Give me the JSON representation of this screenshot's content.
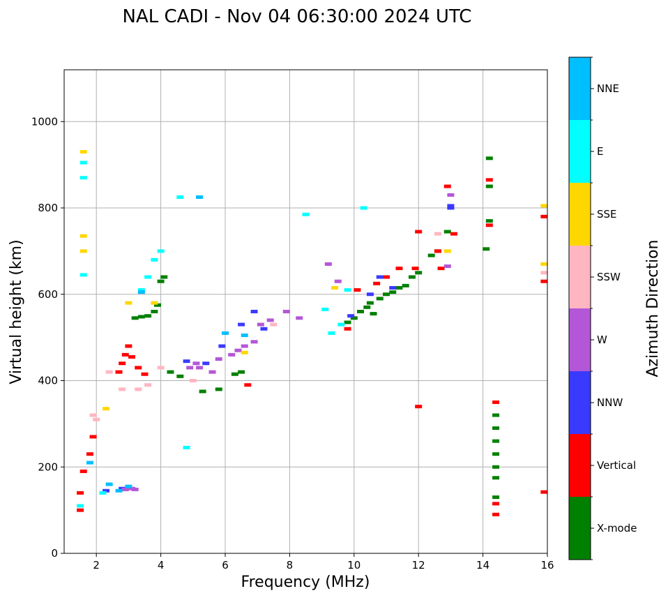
{
  "chart_data": {
    "type": "scatter",
    "title": "NAL CADI - Nov 04 06:30:00 2024 UTC",
    "xlabel": "Frequency (MHz)",
    "ylabel": "Virtual height (km)",
    "xlim": [
      1,
      16
    ],
    "ylim": [
      0,
      1120
    ],
    "grid": true,
    "xticks": [
      2,
      4,
      6,
      8,
      10,
      12,
      14,
      16
    ],
    "yticks": [
      0,
      200,
      400,
      600,
      800,
      1000
    ],
    "colorbar": {
      "label": "Azimuth Direction",
      "categories": [
        "X-mode",
        "Vertical",
        "NNW",
        "W",
        "SSW",
        "SSE",
        "E",
        "NNE"
      ],
      "colors": [
        "#008000",
        "#ff0000",
        "#3a3aff",
        "#b456d8",
        "#ffb6c1",
        "#ffd700",
        "#00ffff",
        "#00bfff"
      ]
    },
    "series": [
      {
        "name": "X-mode",
        "points": [
          [
            3.2,
            545
          ],
          [
            3.4,
            548
          ],
          [
            3.6,
            550
          ],
          [
            3.8,
            560
          ],
          [
            3.9,
            575
          ],
          [
            4.0,
            630
          ],
          [
            4.1,
            640
          ],
          [
            4.3,
            420
          ],
          [
            4.6,
            410
          ],
          [
            5.3,
            375
          ],
          [
            5.8,
            380
          ],
          [
            6.3,
            415
          ],
          [
            6.5,
            420
          ],
          [
            9.8,
            535
          ],
          [
            10.0,
            545
          ],
          [
            10.2,
            560
          ],
          [
            10.4,
            570
          ],
          [
            10.5,
            580
          ],
          [
            10.6,
            555
          ],
          [
            10.8,
            590
          ],
          [
            11.0,
            600
          ],
          [
            11.2,
            605
          ],
          [
            11.4,
            615
          ],
          [
            11.6,
            620
          ],
          [
            11.8,
            640
          ],
          [
            12.0,
            650
          ],
          [
            12.4,
            690
          ],
          [
            12.6,
            700
          ],
          [
            12.9,
            745
          ],
          [
            14.1,
            705
          ],
          [
            14.2,
            770
          ],
          [
            14.2,
            850
          ],
          [
            14.2,
            915
          ],
          [
            14.4,
            130
          ],
          [
            14.4,
            175
          ],
          [
            14.4,
            200
          ],
          [
            14.4,
            230
          ],
          [
            14.4,
            260
          ],
          [
            14.4,
            290
          ],
          [
            14.4,
            320
          ]
        ]
      },
      {
        "name": "Vertical",
        "points": [
          [
            1.5,
            140
          ],
          [
            1.5,
            100
          ],
          [
            1.6,
            190
          ],
          [
            1.8,
            230
          ],
          [
            1.9,
            270
          ],
          [
            2.7,
            420
          ],
          [
            2.8,
            440
          ],
          [
            2.9,
            460
          ],
          [
            3.0,
            480
          ],
          [
            3.1,
            455
          ],
          [
            3.3,
            430
          ],
          [
            3.5,
            415
          ],
          [
            6.7,
            390
          ],
          [
            9.8,
            520
          ],
          [
            10.1,
            610
          ],
          [
            10.7,
            625
          ],
          [
            11.0,
            640
          ],
          [
            11.4,
            660
          ],
          [
            11.9,
            660
          ],
          [
            12.0,
            745
          ],
          [
            12.0,
            340
          ],
          [
            12.6,
            700
          ],
          [
            12.7,
            660
          ],
          [
            12.9,
            850
          ],
          [
            13.1,
            740
          ],
          [
            14.2,
            760
          ],
          [
            14.2,
            865
          ],
          [
            14.4,
            90
          ],
          [
            14.4,
            115
          ],
          [
            14.4,
            350
          ],
          [
            15.9,
            630
          ],
          [
            15.9,
            780
          ],
          [
            15.9,
            142
          ]
        ]
      },
      {
        "name": "NNW",
        "points": [
          [
            2.3,
            145
          ],
          [
            2.8,
            150
          ],
          [
            4.8,
            445
          ],
          [
            5.4,
            440
          ],
          [
            5.9,
            480
          ],
          [
            6.5,
            530
          ],
          [
            6.9,
            560
          ],
          [
            7.2,
            520
          ],
          [
            9.9,
            550
          ],
          [
            10.5,
            600
          ],
          [
            10.8,
            640
          ],
          [
            11.2,
            615
          ],
          [
            13.0,
            805
          ],
          [
            13.0,
            800
          ]
        ]
      },
      {
        "name": "W",
        "points": [
          [
            2.9,
            148
          ],
          [
            3.1,
            150
          ],
          [
            3.2,
            148
          ],
          [
            4.9,
            430
          ],
          [
            5.1,
            440
          ],
          [
            5.2,
            430
          ],
          [
            5.6,
            420
          ],
          [
            5.8,
            450
          ],
          [
            6.2,
            460
          ],
          [
            6.4,
            470
          ],
          [
            6.6,
            480
          ],
          [
            6.9,
            490
          ],
          [
            7.1,
            530
          ],
          [
            7.4,
            540
          ],
          [
            7.9,
            560
          ],
          [
            8.3,
            545
          ],
          [
            9.2,
            670
          ],
          [
            9.5,
            630
          ],
          [
            12.9,
            665
          ],
          [
            13.0,
            830
          ]
        ]
      },
      {
        "name": "SSW",
        "points": [
          [
            1.9,
            320
          ],
          [
            2.0,
            310
          ],
          [
            2.4,
            420
          ],
          [
            2.8,
            380
          ],
          [
            3.3,
            380
          ],
          [
            3.6,
            390
          ],
          [
            4.0,
            430
          ],
          [
            5.0,
            400
          ],
          [
            7.5,
            530
          ],
          [
            12.6,
            740
          ],
          [
            15.9,
            650
          ]
        ]
      },
      {
        "name": "SSE",
        "points": [
          [
            1.6,
            700
          ],
          [
            1.6,
            735
          ],
          [
            1.6,
            930
          ],
          [
            2.3,
            335
          ],
          [
            3.0,
            580
          ],
          [
            3.8,
            580
          ],
          [
            6.6,
            465
          ],
          [
            9.4,
            615
          ],
          [
            12.9,
            700
          ],
          [
            15.9,
            670
          ],
          [
            15.9,
            805
          ]
        ]
      },
      {
        "name": "E",
        "points": [
          [
            1.5,
            110
          ],
          [
            1.6,
            645
          ],
          [
            1.6,
            870
          ],
          [
            1.6,
            905
          ],
          [
            2.2,
            140
          ],
          [
            3.4,
            610
          ],
          [
            3.6,
            640
          ],
          [
            3.8,
            680
          ],
          [
            4.0,
            700
          ],
          [
            4.6,
            825
          ],
          [
            4.8,
            245
          ],
          [
            8.5,
            785
          ],
          [
            9.1,
            565
          ],
          [
            9.3,
            510
          ],
          [
            9.6,
            530
          ],
          [
            9.8,
            610
          ],
          [
            10.3,
            800
          ]
        ]
      },
      {
        "name": "NNE",
        "points": [
          [
            1.8,
            210
          ],
          [
            2.4,
            160
          ],
          [
            2.7,
            145
          ],
          [
            3.0,
            155
          ],
          [
            3.4,
            605
          ],
          [
            5.2,
            825
          ],
          [
            6.0,
            510
          ],
          [
            6.6,
            505
          ]
        ]
      }
    ]
  }
}
